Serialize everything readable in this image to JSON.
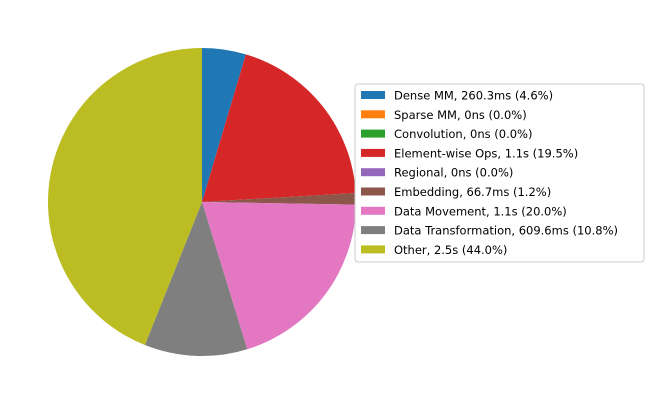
{
  "chart_data": {
    "type": "pie",
    "title": "",
    "start_angle_deg": 90,
    "direction": "clockwise",
    "legend_placement": "right",
    "slices": [
      {
        "label": "Dense MM, 260.3ms (4.6%)",
        "value": 4.6,
        "color": "#1f77b4"
      },
      {
        "label": "Sparse MM, 0ns (0.0%)",
        "value": 0.0,
        "color": "#ff7f0e"
      },
      {
        "label": "Convolution, 0ns (0.0%)",
        "value": 0.0,
        "color": "#2ca02c"
      },
      {
        "label": "Element-wise Ops, 1.1s (19.5%)",
        "value": 19.5,
        "color": "#d62728"
      },
      {
        "label": "Regional, 0ns (0.0%)",
        "value": 0.0,
        "color": "#9467bd"
      },
      {
        "label": "Embedding, 66.7ms (1.2%)",
        "value": 1.2,
        "color": "#8c564b"
      },
      {
        "label": "Data Movement, 1.1s (20.0%)",
        "value": 20.0,
        "color": "#e377c2"
      },
      {
        "label": "Data Transformation, 609.6ms (10.8%)",
        "value": 10.8,
        "color": "#7f7f7f"
      },
      {
        "label": "Other, 2.5s (44.0%)",
        "value": 44.0,
        "color": "#bcbd22"
      }
    ]
  }
}
